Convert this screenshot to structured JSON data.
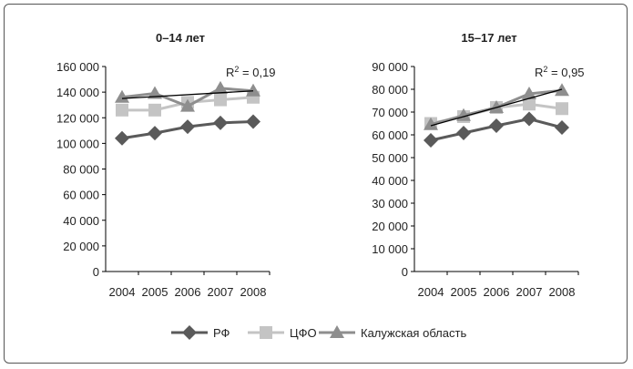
{
  "chart_data": [
    {
      "type": "line",
      "title": "0–14 лет",
      "categories": [
        "2004",
        "2005",
        "2006",
        "2007",
        "2008"
      ],
      "ylim": [
        0,
        160000
      ],
      "yticks": [
        "0",
        "20 000",
        "40 000",
        "60 000",
        "80 000",
        "100 000",
        "120 000",
        "140 000",
        "160 000"
      ],
      "series": [
        {
          "name": "РФ",
          "values": [
            104000,
            108000,
            113000,
            116000,
            117000
          ]
        },
        {
          "name": "ЦФО",
          "values": [
            126000,
            126000,
            132000,
            134000,
            136000
          ]
        },
        {
          "name": "Калужская область",
          "values": [
            136000,
            139000,
            129000,
            143000,
            141000
          ]
        }
      ],
      "trendline": {
        "series": "Калужская область",
        "values": [
          135000,
          141000
        ],
        "label": "R",
        "sup": "2",
        "value": " = 0,19"
      }
    },
    {
      "type": "line",
      "title": "15–17 лет",
      "categories": [
        "2004",
        "2005",
        "2006",
        "2007",
        "2008"
      ],
      "ylim": [
        0,
        90000
      ],
      "yticks": [
        "0",
        "10 000",
        "20 000",
        "30 000",
        "40 000",
        "50 000",
        "60 000",
        "70 000",
        "80 000",
        "90 000"
      ],
      "series": [
        {
          "name": "РФ",
          "values": [
            57600,
            60800,
            64000,
            67000,
            63200
          ]
        },
        {
          "name": "ЦФО",
          "values": [
            65000,
            68000,
            72000,
            73500,
            71500
          ]
        },
        {
          "name": "Калужская область",
          "values": [
            64500,
            68500,
            72000,
            78000,
            79500
          ]
        }
      ],
      "trendline": {
        "series": "Калужская область",
        "values": [
          64000,
          80000
        ],
        "label": "R",
        "sup": "2",
        "value": " = 0,95"
      }
    }
  ],
  "legend": [
    {
      "label": "РФ",
      "color": "#5a5a5a",
      "marker": "diamond"
    },
    {
      "label": "ЦФО",
      "color": "#c4c4c4",
      "marker": "square"
    },
    {
      "label": "Калужская область",
      "color": "#8e8e8e",
      "marker": "triangle"
    }
  ]
}
